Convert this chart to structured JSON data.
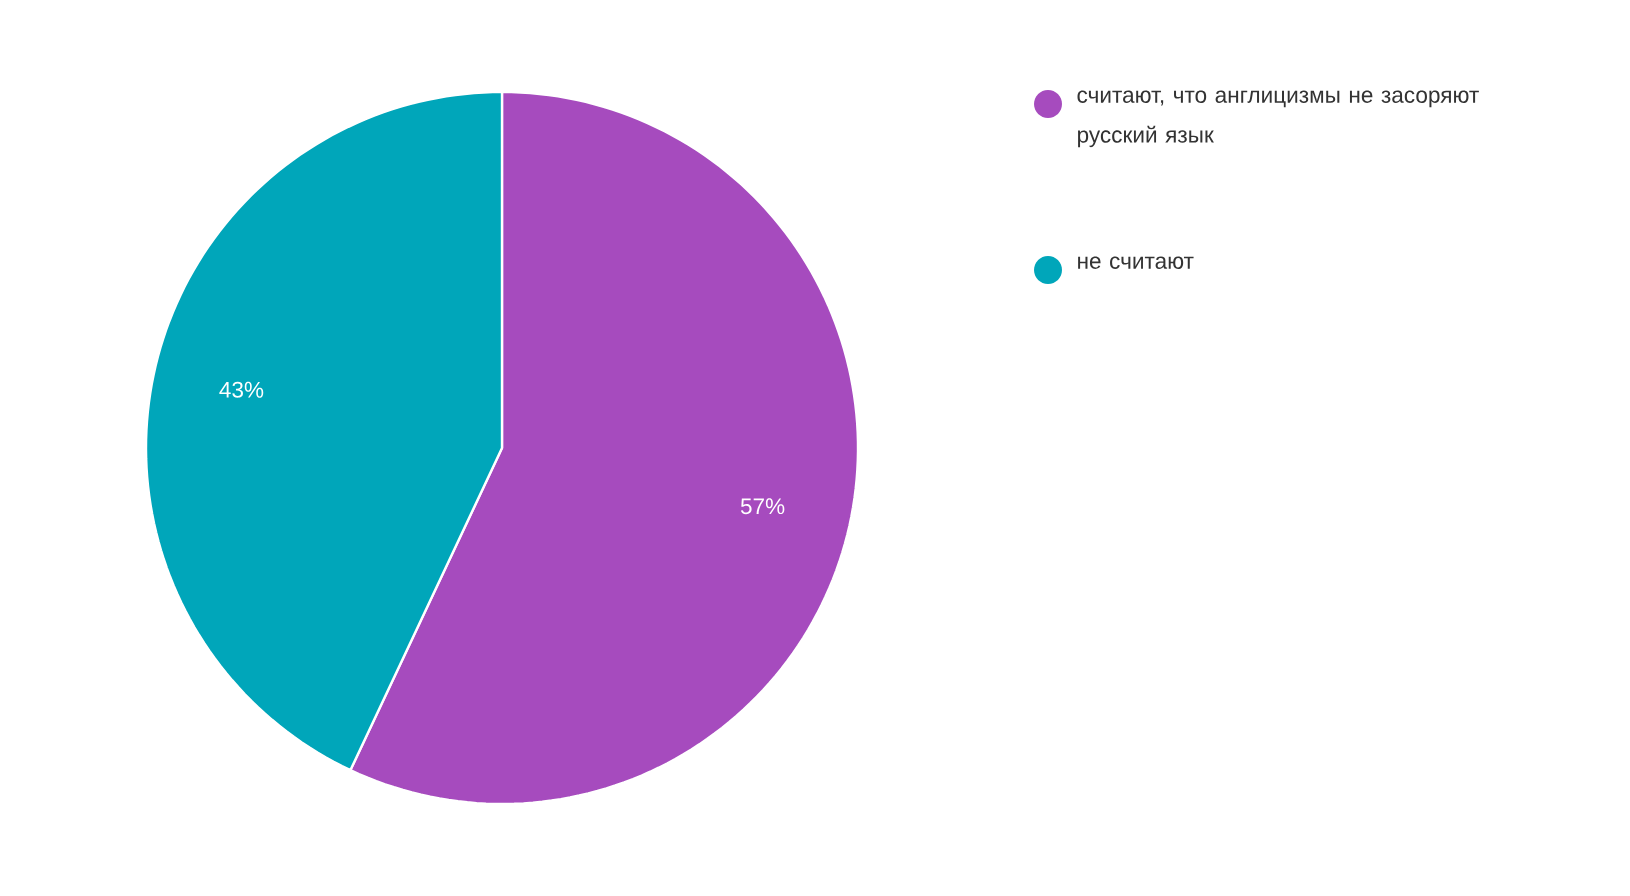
{
  "chart_data": {
    "type": "pie",
    "categories": [
      "считают, что англицизмы не засоряют русский язык",
      "не считают"
    ],
    "values": [
      57,
      43
    ],
    "colors": [
      "#a64bbe",
      "#00a6ba"
    ],
    "value_labels": [
      "57%",
      "43%"
    ],
    "legend": "top right"
  }
}
